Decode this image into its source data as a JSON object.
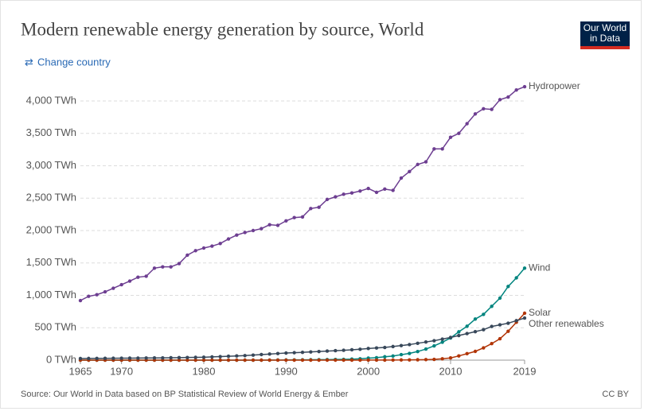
{
  "chart_data": {
    "type": "line",
    "title": "Modern renewable energy generation by source, World",
    "source": "Source: Our World in Data based on BP Statistical Review of World Energy & Ember",
    "license": "CC BY",
    "x": [
      1965,
      1966,
      1967,
      1968,
      1969,
      1970,
      1971,
      1972,
      1973,
      1974,
      1975,
      1976,
      1977,
      1978,
      1979,
      1980,
      1981,
      1982,
      1983,
      1984,
      1985,
      1986,
      1987,
      1988,
      1989,
      1990,
      1991,
      1992,
      1993,
      1994,
      1995,
      1996,
      1997,
      1998,
      1999,
      2000,
      2001,
      2002,
      2003,
      2004,
      2005,
      2006,
      2007,
      2008,
      2009,
      2010,
      2011,
      2012,
      2013,
      2014,
      2015,
      2016,
      2017,
      2018,
      2019
    ],
    "xlim": [
      1965,
      2019
    ],
    "xticks": [
      1965,
      1970,
      1980,
      1990,
      2000,
      2010,
      2019
    ],
    "ylim": [
      0,
      4000
    ],
    "yticks": [
      {
        "value": 0,
        "label": "0 TWh"
      },
      {
        "value": 500,
        "label": "500 TWh"
      },
      {
        "value": 1000,
        "label": "1,000 TWh"
      },
      {
        "value": 1500,
        "label": "1,500 TWh"
      },
      {
        "value": 2000,
        "label": "2,000 TWh"
      },
      {
        "value": 2500,
        "label": "2,500 TWh"
      },
      {
        "value": 3000,
        "label": "3,000 TWh"
      },
      {
        "value": 3500,
        "label": "3,500 TWh"
      },
      {
        "value": 4000,
        "label": "4,000 TWh"
      }
    ],
    "grid": true,
    "series": [
      {
        "name": "Hydropower",
        "color": "#6d3e91",
        "values": [
          920,
          985,
          1010,
          1055,
          1110,
          1165,
          1220,
          1280,
          1295,
          1420,
          1440,
          1440,
          1490,
          1620,
          1690,
          1730,
          1760,
          1800,
          1870,
          1930,
          1970,
          2000,
          2030,
          2090,
          2080,
          2150,
          2200,
          2210,
          2340,
          2360,
          2480,
          2520,
          2560,
          2580,
          2610,
          2650,
          2590,
          2640,
          2620,
          2810,
          2910,
          3020,
          3060,
          3260,
          3260,
          3440,
          3500,
          3650,
          3800,
          3880,
          3870,
          4020,
          4060,
          4170,
          4220
        ]
      },
      {
        "name": "Wind",
        "color": "#00847e",
        "values": [
          0,
          0,
          0,
          0,
          0,
          0,
          0,
          0,
          0,
          0,
          0,
          0,
          0,
          0,
          0,
          0,
          0,
          0,
          0,
          0,
          0,
          0,
          0,
          1,
          2,
          3,
          4,
          5,
          6,
          7,
          8,
          10,
          12,
          16,
          21,
          31,
          38,
          52,
          63,
          85,
          104,
          133,
          171,
          220,
          277,
          342,
          437,
          523,
          634,
          706,
          831,
          957,
          1137,
          1270,
          1420
        ]
      },
      {
        "name": "Solar",
        "color": "#b13507",
        "values": [
          0,
          0,
          0,
          0,
          0,
          0,
          0,
          0,
          0,
          0,
          0,
          0,
          0,
          0,
          0,
          0,
          0,
          0,
          0,
          0,
          0,
          0,
          0,
          0,
          0,
          0,
          0,
          0,
          0,
          0,
          0,
          0,
          0,
          0,
          0,
          1,
          1,
          1,
          2,
          3,
          4,
          6,
          8,
          12,
          21,
          34,
          65,
          100,
          135,
          190,
          255,
          330,
          445,
          585,
          724
        ]
      },
      {
        "name": "Other renewables",
        "color": "#38485a",
        "values": [
          25,
          26,
          27,
          28,
          29,
          30,
          31,
          32,
          33,
          34,
          35,
          37,
          39,
          41,
          43,
          45,
          50,
          55,
          60,
          65,
          70,
          78,
          86,
          94,
          102,
          110,
          115,
          120,
          127,
          133,
          140,
          146,
          152,
          160,
          168,
          180,
          188,
          196,
          210,
          225,
          240,
          260,
          280,
          300,
          325,
          350,
          380,
          410,
          440,
          470,
          520,
          545,
          570,
          610,
          650
        ]
      }
    ]
  },
  "controls": {
    "change_country": "Change country"
  },
  "logo": {
    "lines": [
      "Our World",
      "in Data"
    ]
  }
}
